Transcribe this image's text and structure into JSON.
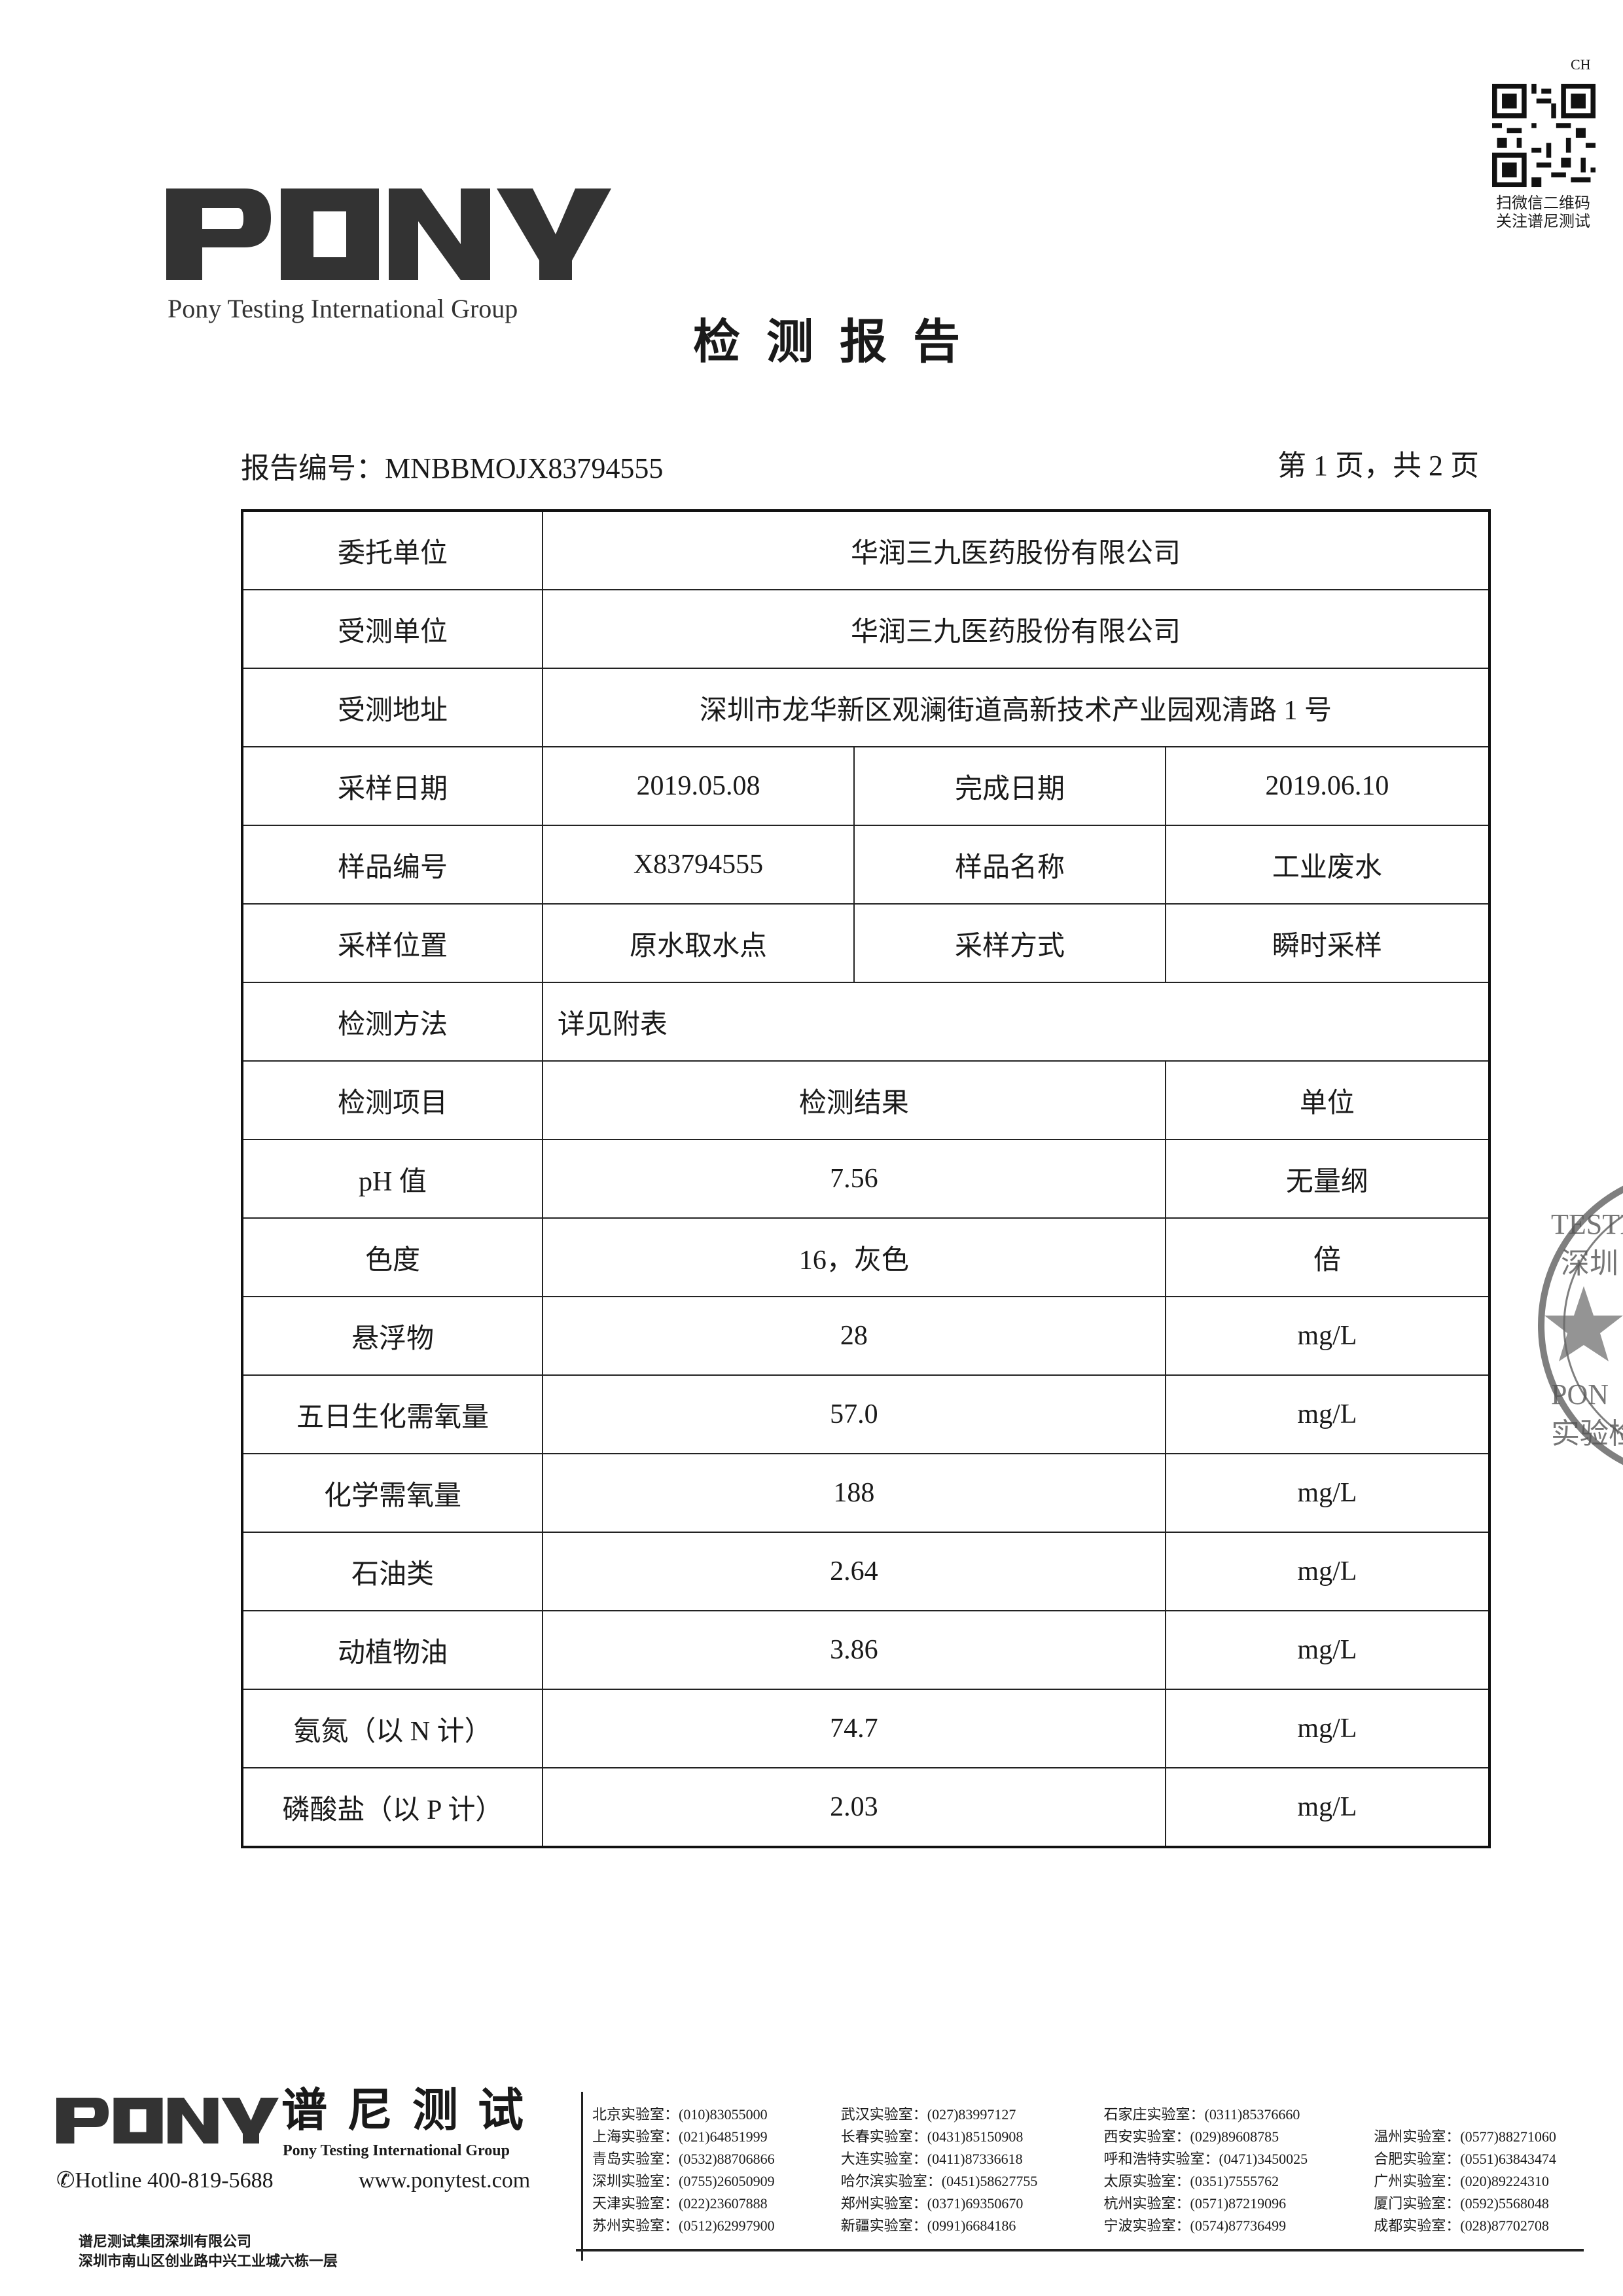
{
  "header": {
    "logo_text": "PONY",
    "logo_subtitle": "Pony Testing International Group",
    "corner_code": "CH",
    "qr_caption_line1": "扫微信二维码",
    "qr_caption_line2": "关注谱尼测试",
    "title": "检测报告",
    "report_number_label": "报告编号：",
    "report_number": "MNBBMOJX83794555",
    "page_info": "第 1 页，共 2 页"
  },
  "table": {
    "client_label": "委托单位",
    "client": "华润三九医药股份有限公司",
    "tested_unit_label": "受测单位",
    "tested_unit": "华润三九医药股份有限公司",
    "address_label": "受测地址",
    "address": "深圳市龙华新区观澜街道高新技术产业园观清路 1 号",
    "sampling_date_label": "采样日期",
    "sampling_date": "2019.05.08",
    "completion_date_label": "完成日期",
    "completion_date": "2019.06.10",
    "sample_no_label": "样品编号",
    "sample_no": "X83794555",
    "sample_name_label": "样品名称",
    "sample_name": "工业废水",
    "sampling_location_label": "采样位置",
    "sampling_location": "原水取水点",
    "sampling_method_label": "采样方式",
    "sampling_method": "瞬时采样",
    "method_label": "检测方法",
    "method": "详见附表",
    "col_item": "检测项目",
    "col_result": "检测结果",
    "col_unit": "单位",
    "results": [
      {
        "item": "pH 值",
        "result": "7.56",
        "unit": "无量纲"
      },
      {
        "item": "色度",
        "result": "16，灰色",
        "unit": "倍"
      },
      {
        "item": "悬浮物",
        "result": "28",
        "unit": "mg/L"
      },
      {
        "item": "五日生化需氧量",
        "result": "57.0",
        "unit": "mg/L"
      },
      {
        "item": "化学需氧量",
        "result": "188",
        "unit": "mg/L"
      },
      {
        "item": "石油类",
        "result": "2.64",
        "unit": "mg/L"
      },
      {
        "item": "动植物油",
        "result": "3.86",
        "unit": "mg/L"
      },
      {
        "item": "氨氮（以 N 计）",
        "result": "74.7",
        "unit": "mg/L"
      },
      {
        "item": "磷酸盐（以 P 计）",
        "result": "2.03",
        "unit": "mg/L"
      }
    ]
  },
  "footer": {
    "logo_text": "PONY",
    "brand_cn": "谱尼测试",
    "brand_en": "Pony Testing International Group",
    "hotline": "Hotline 400-819-5688",
    "website": "www.ponytest.com",
    "company": "谱尼测试集团深圳有限公司",
    "company_address": "深圳市南山区创业路中兴工业城六栋一层",
    "labs": [
      "北京实验室：(010)83055000",
      "武汉实验室：(027)83997127",
      "石家庄实验室：(0311)85376660",
      "",
      "上海实验室：(021)64851999",
      "长春实验室：(0431)85150908",
      "西安实验室：(029)89608785",
      "温州实验室：(0577)88271060",
      "青岛实验室：(0532)88706866",
      "大连实验室：(0411)87336618",
      "呼和浩特实验室：(0471)3450025",
      "合肥实验室：(0551)63843474",
      "深圳实验室：(0755)26050909",
      "哈尔滨实验室：(0451)58627755",
      "太原实验室：(0351)7555762",
      "广州实验室：(020)89224310",
      "天津实验室：(022)23607888",
      "郑州实验室：(0371)69350670",
      "杭州实验室：(0571)87219096",
      "厦门实验室：(0592)5568048",
      "苏州实验室：(0512)62997900",
      "新疆实验室：(0991)6684186",
      "宁波实验室：(0574)87736499",
      "成都实验室：(028)87702708"
    ]
  },
  "stamp": {
    "text_fragments": [
      "TESTI",
      "深圳",
      "PON",
      "实验检"
    ]
  }
}
